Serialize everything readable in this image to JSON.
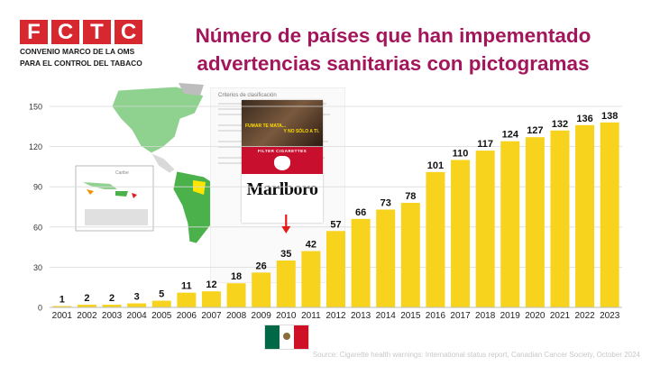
{
  "logo": {
    "letters": [
      "F",
      "C",
      "T",
      "C"
    ],
    "line1": "CONVENIO MARCO DE LA OMS",
    "line2": "PARA EL CONTROL DEL TABACO"
  },
  "title": {
    "line1": "Número de países que han impementado",
    "line2": "advertencias sanitarias con pictogramas"
  },
  "source": "Source: Cigarette health warnings: International status report, Canadian Cancer Society, October 2024",
  "doc": {
    "heading": "Criterios de clasificación"
  },
  "pack": {
    "warning_left": "FUMAR TE MATA...",
    "warning_right": "Y NO SÓLO A TI.",
    "filter": "FILTER CIGARETTES",
    "brand": "Marlboro"
  },
  "map": {
    "caribbean_label": "Caribe"
  },
  "colors": {
    "bar": "#f7d31e",
    "title": "#a3165b",
    "logo": "#d7282f",
    "arrow": "#e21b1b",
    "grid": "#d9d9d9"
  },
  "icons": {
    "arrow": "down-arrow-icon",
    "flag": "mexico-flag-icon"
  },
  "chart_data": {
    "type": "bar",
    "categories": [
      "2001",
      "2002",
      "2003",
      "2004",
      "2005",
      "2006",
      "2007",
      "2008",
      "2009",
      "2010",
      "2011",
      "2012",
      "2013",
      "2014",
      "2015",
      "2016",
      "2017",
      "2018",
      "2019",
      "2020",
      "2021",
      "2022",
      "2023"
    ],
    "values": [
      1,
      2,
      2,
      3,
      5,
      11,
      12,
      18,
      26,
      35,
      42,
      57,
      66,
      73,
      78,
      101,
      110,
      117,
      124,
      127,
      132,
      136,
      138
    ],
    "data_labels": [
      "1",
      "2",
      "2",
      "3",
      "5",
      "11",
      "12",
      "18",
      "26",
      "35",
      "42",
      "57",
      "66",
      "73",
      "78",
      "101",
      "110",
      "117",
      "124",
      "127",
      "132",
      "136",
      "138"
    ],
    "yticks": [
      0,
      30,
      60,
      90,
      120,
      150
    ],
    "ytick_labels": [
      "0",
      "30",
      "60",
      "90",
      "120",
      "150"
    ],
    "ylim": [
      0,
      150
    ],
    "grid": true,
    "highlight_category": "2010",
    "legend": "none"
  }
}
